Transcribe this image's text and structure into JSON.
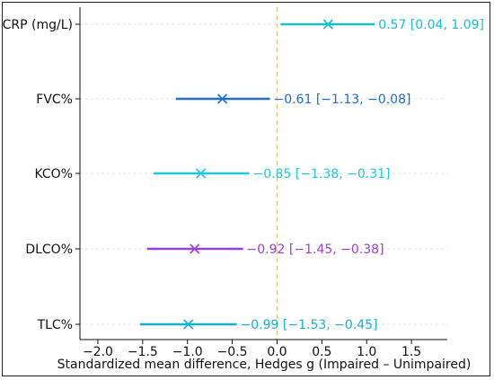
{
  "chart_data": {
    "type": "forest",
    "xlabel": "Standardized mean difference, Hedges g (Impaired – Unimpaired)",
    "xlim": [
      -2.2,
      1.9
    ],
    "xticks": [
      -2.0,
      -1.5,
      -1.0,
      -0.5,
      0.0,
      0.5,
      1.0,
      1.5
    ],
    "xtick_labels": [
      "−2.0",
      "−1.5",
      "−1.0",
      "−0.5",
      "0.0",
      "0.5",
      "1.0",
      "1.5"
    ],
    "grid": "horizontal dashed",
    "reference_line": 0,
    "items": [
      {
        "label": "CRP (mg/L)",
        "estimate": 0.57,
        "low": 0.04,
        "high": 1.09,
        "annotation": "0.57 [0.04, 1.09]",
        "color": "#17becf"
      },
      {
        "label": "FVC%",
        "estimate": -0.61,
        "low": -1.13,
        "high": -0.08,
        "annotation": "−0.61 [−1.13, −0.08]",
        "color": "#1f6fd1"
      },
      {
        "label": "KCO%",
        "estimate": -0.85,
        "low": -1.38,
        "high": -0.31,
        "annotation": "−0.85 [−1.38, −0.31]",
        "color": "#1ec8e0"
      },
      {
        "label": "DLCO%",
        "estimate": -0.92,
        "low": -1.45,
        "high": -0.38,
        "annotation": "−0.92 [−1.45, −0.38]",
        "color": "#9b3fd6"
      },
      {
        "label": "TLC%",
        "estimate": -0.99,
        "low": -1.53,
        "high": -0.45,
        "annotation": "−0.99 [−1.53, −0.45]",
        "color": "#17aed6"
      }
    ]
  }
}
